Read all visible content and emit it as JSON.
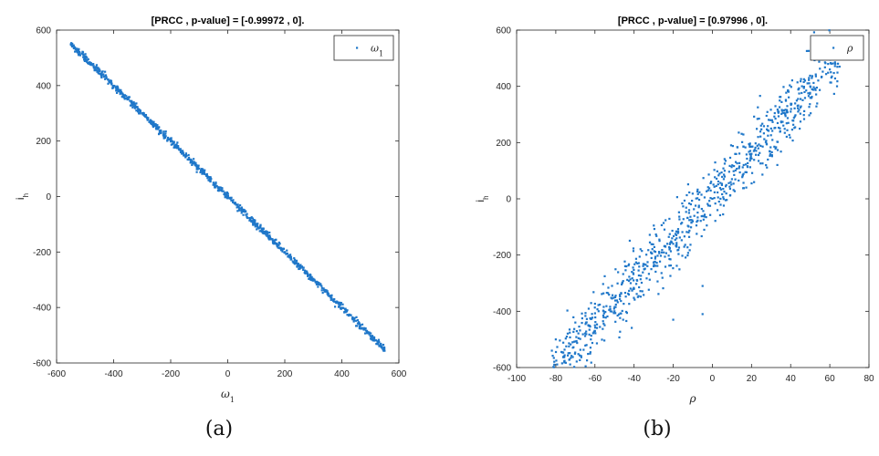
{
  "chart_data": [
    {
      "type": "scatter",
      "title": "[PRCC , p-value] = [-0.99972 , 0].",
      "xlabel": "ω",
      "xlabel_sub": "1",
      "ylabel": "i",
      "ylabel_sub": "h",
      "xlim": [
        -600,
        600
      ],
      "ylim": [
        -600,
        600
      ],
      "xticks": [
        -600,
        -400,
        -200,
        0,
        200,
        400,
        600
      ],
      "yticks": [
        -600,
        -400,
        -200,
        0,
        200,
        400,
        600
      ],
      "legend": {
        "label": "ω",
        "label_sub": "1",
        "placement": "top-right"
      },
      "marker_color": "#1f77c9",
      "trend": {
        "slope": -1.0,
        "intercept": 0,
        "x_range": [
          -550,
          550
        ],
        "spread": 6
      },
      "x": [
        -550,
        -540,
        -500,
        -450,
        -400,
        -350,
        -300,
        -250,
        -200,
        -150,
        -100,
        -50,
        0,
        50,
        100,
        150,
        200,
        250,
        300,
        350,
        400,
        450,
        500,
        540,
        550
      ],
      "y": [
        548,
        545,
        500,
        452,
        398,
        353,
        300,
        248,
        202,
        149,
        101,
        50,
        0,
        -52,
        -99,
        -151,
        -200,
        -248,
        -302,
        -350,
        -401,
        -448,
        -502,
        -540,
        -556
      ]
    },
    {
      "type": "scatter",
      "title": "[PRCC , p-value] = [0.97996 , 0].",
      "xlabel": "ρ",
      "xlabel_sub": "",
      "ylabel": "i",
      "ylabel_sub": "h",
      "xlim": [
        -100,
        80
      ],
      "ylim": [
        -600,
        600
      ],
      "xticks": [
        -100,
        -80,
        -60,
        -40,
        -20,
        0,
        20,
        40,
        60,
        80
      ],
      "yticks": [
        -600,
        -400,
        -200,
        0,
        200,
        400,
        600
      ],
      "legend": {
        "label": "ρ",
        "label_sub": "",
        "placement": "top-right"
      },
      "marker_color": "#1f77c9",
      "trend": {
        "slope": 7.6,
        "intercept": 10,
        "x_range": [
          -82,
          65
        ],
        "spread": 55
      },
      "x": [
        -82,
        -80,
        -70,
        -60,
        -50,
        -40,
        -30,
        -20,
        -10,
        -5,
        0,
        10,
        20,
        30,
        40,
        50,
        60,
        65,
        -20,
        -5
      ],
      "y": [
        -540,
        -500,
        -440,
        -450,
        -400,
        -320,
        -240,
        -160,
        -80,
        -310,
        0,
        70,
        160,
        250,
        310,
        400,
        460,
        470,
        -430,
        -410
      ]
    }
  ],
  "captions": [
    "(a)",
    "(b)"
  ]
}
